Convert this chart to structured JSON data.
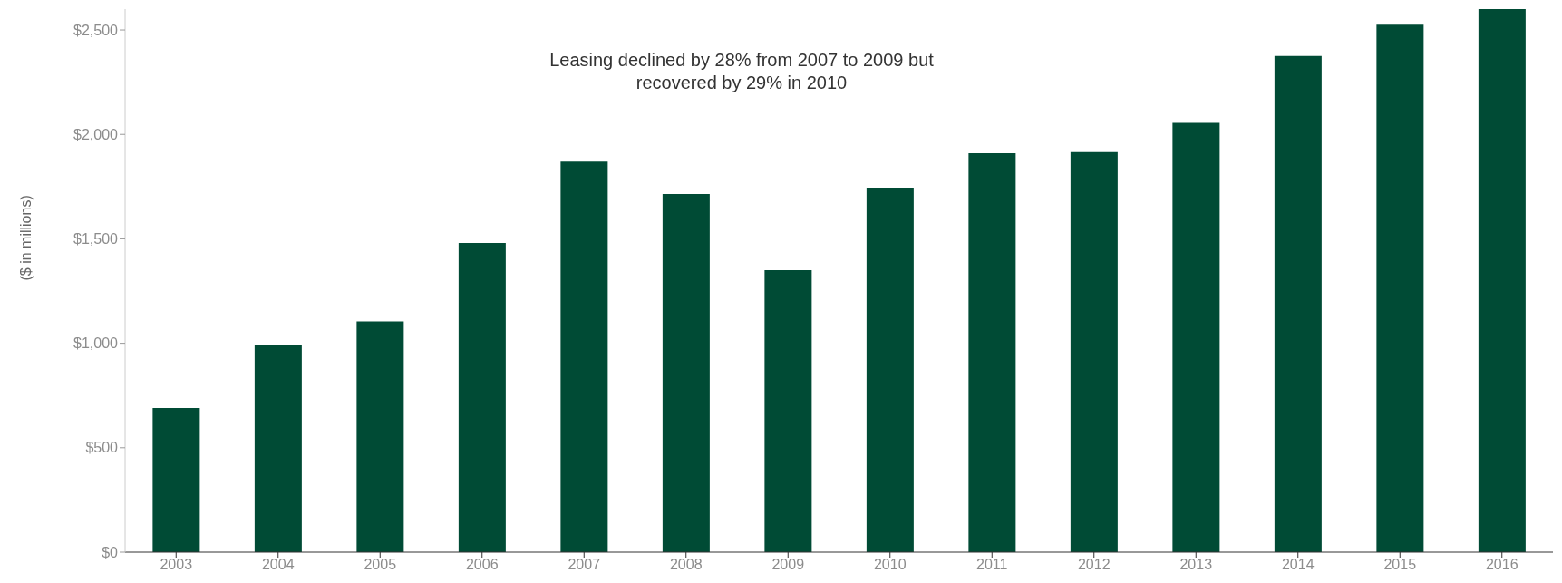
{
  "chart_data": {
    "type": "bar",
    "ylabel": "($ in millions)",
    "annotations": [
      "Leasing declined by 28% from 2007 to 2009 but recovered by 29% in 2010"
    ],
    "categories": [
      "2003",
      "2004",
      "2005",
      "2006",
      "2007",
      "2008",
      "2009",
      "2010",
      "2011",
      "2012",
      "2013",
      "2014",
      "2015",
      "2016"
    ],
    "values": [
      690,
      990,
      1105,
      1480,
      1870,
      1715,
      1350,
      1745,
      1910,
      1915,
      2055,
      2375,
      2525,
      2600
    ],
    "color": "#004b35",
    "ylim": [
      0,
      2600
    ],
    "yticks": [
      {
        "value": 0,
        "label": "$0"
      },
      {
        "value": 500,
        "label": "$500"
      },
      {
        "value": 1000,
        "label": "$1,000"
      },
      {
        "value": 1500,
        "label": "$1,500"
      },
      {
        "value": 2000,
        "label": "$2,000"
      },
      {
        "value": 2500,
        "label": "$2,500"
      }
    ],
    "grid": false,
    "legend": false
  }
}
